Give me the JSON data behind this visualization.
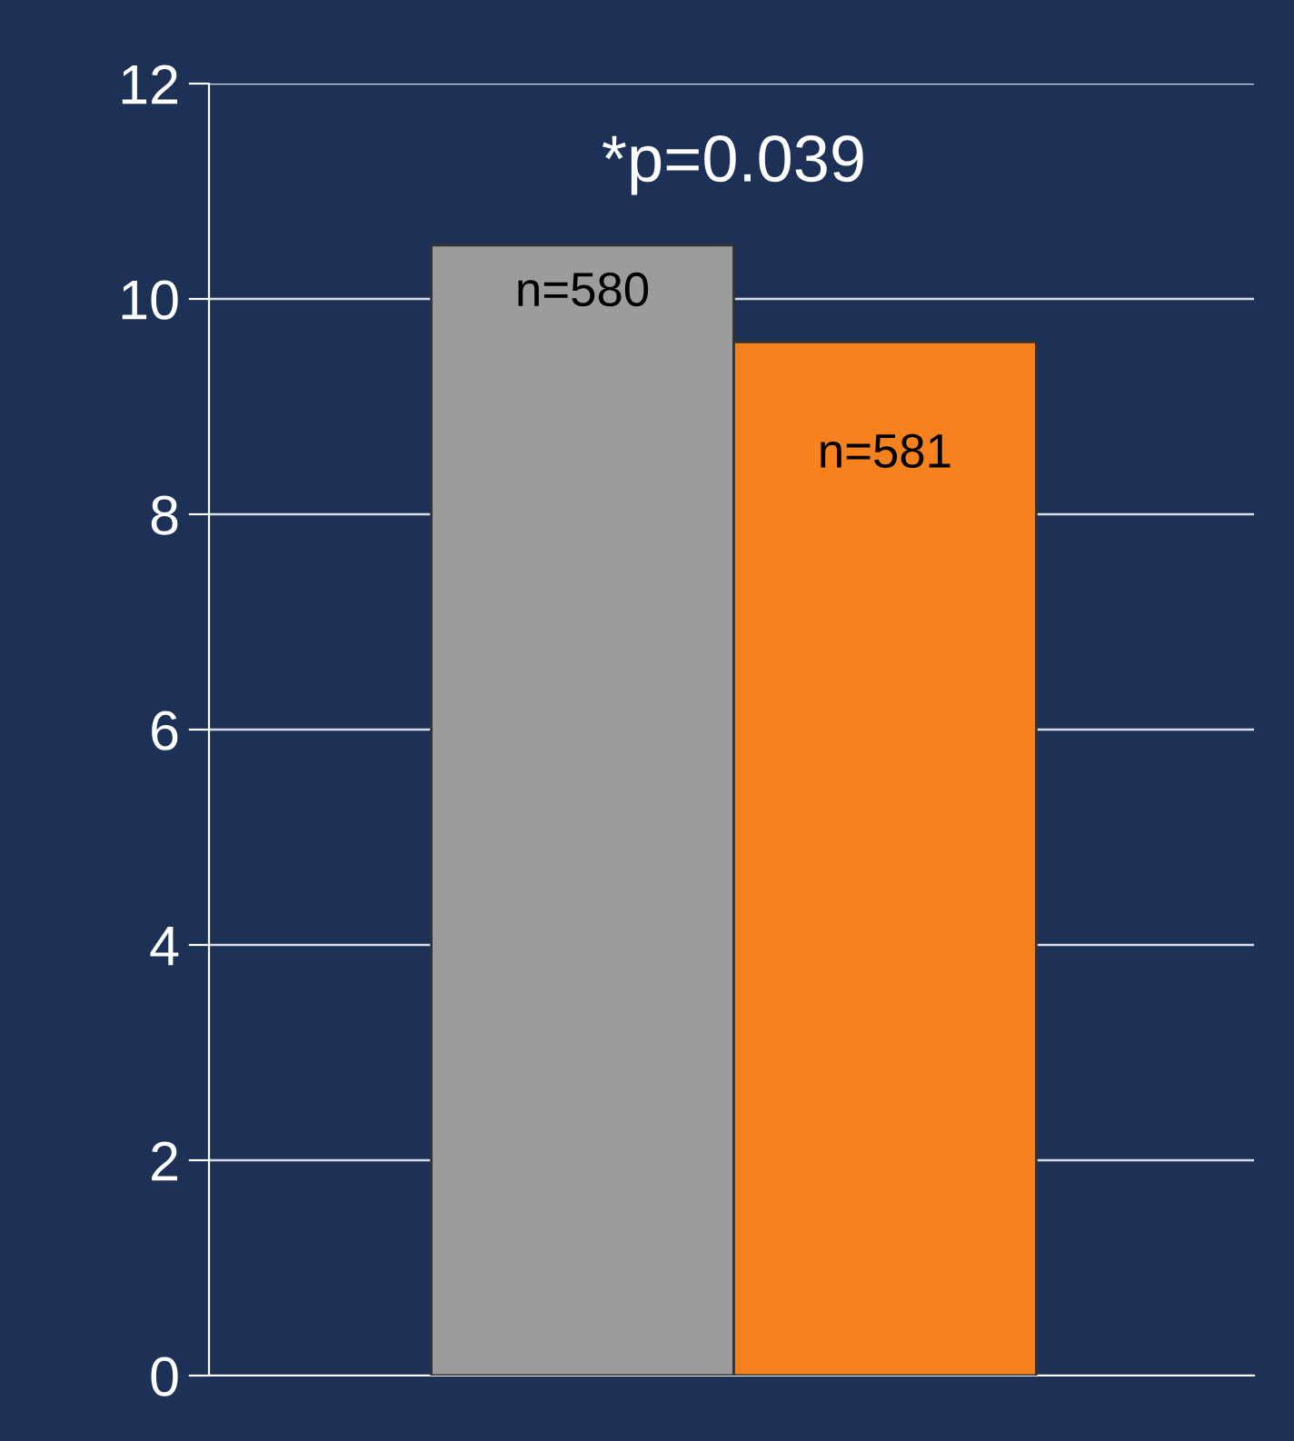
{
  "chart_data": {
    "type": "bar",
    "categories": [
      null,
      null
    ],
    "values": [
      10.5,
      9.6
    ],
    "colors": [
      "#9c9c9c",
      "#f5821f"
    ],
    "ylim": [
      0,
      12
    ],
    "yticks": [
      0,
      2,
      4,
      6,
      8,
      10,
      12
    ],
    "grid": "y",
    "annotations": [
      "*p=0.039",
      "n=580",
      "n=581"
    ]
  }
}
